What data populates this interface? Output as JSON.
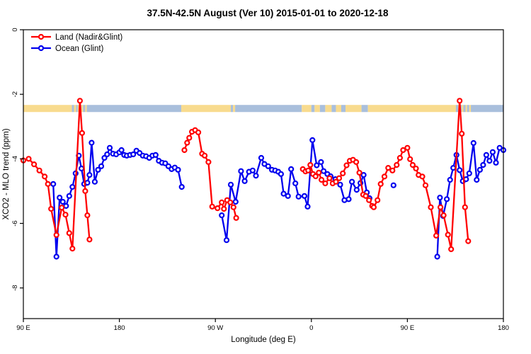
{
  "chart_data": {
    "type": "line",
    "title": "37.5N-42.5N August (Ver 10)   2015-01-01 to 2020-12-18",
    "xlabel": "Longitude (deg E)",
    "ylabel": "XCO2 - MLO trend (ppm)",
    "xlim": [
      90,
      540
    ],
    "ylim": [
      -8.95,
      0
    ],
    "grid": false,
    "legend_position": "top-left",
    "x_ticks": [
      {
        "pos": 90,
        "label": "90 E"
      },
      {
        "pos": 180,
        "label": "180"
      },
      {
        "pos": 270,
        "label": "90 W"
      },
      {
        "pos": 360,
        "label": "0"
      },
      {
        "pos": 450,
        "label": "90 E"
      },
      {
        "pos": 540,
        "label": "180"
      }
    ],
    "y_ticks": [
      {
        "pos": 0,
        "label": "0"
      },
      {
        "pos": -2,
        "label": "-2"
      },
      {
        "pos": -4,
        "label": "-4"
      },
      {
        "pos": -6,
        "label": "-6"
      },
      {
        "pos": -8,
        "label": "-8"
      }
    ],
    "land_ocean_band": {
      "ppm_top": -2.33,
      "ppm_bottom": -2.55,
      "land_color": "#f8db8e",
      "ocean_color": "#a9bfdc",
      "segments": [
        {
          "from": 90,
          "to": 135.5,
          "type": "land"
        },
        {
          "from": 135.5,
          "to": 137.5,
          "type": "ocean"
        },
        {
          "from": 137.5,
          "to": 139.5,
          "type": "land"
        },
        {
          "from": 139.5,
          "to": 141,
          "type": "ocean"
        },
        {
          "from": 141,
          "to": 142.5,
          "type": "land"
        },
        {
          "from": 142.5,
          "to": 144.5,
          "type": "ocean"
        },
        {
          "from": 144.5,
          "to": 146,
          "type": "land"
        },
        {
          "from": 146,
          "to": 148,
          "type": "ocean"
        },
        {
          "from": 148,
          "to": 149.5,
          "type": "land"
        },
        {
          "from": 149.5,
          "to": 238,
          "type": "ocean"
        },
        {
          "from": 238,
          "to": 284.5,
          "type": "land"
        },
        {
          "from": 284.5,
          "to": 286.5,
          "type": "ocean"
        },
        {
          "from": 286.5,
          "to": 288.5,
          "type": "land"
        },
        {
          "from": 288.5,
          "to": 351,
          "type": "ocean"
        },
        {
          "from": 351,
          "to": 360,
          "type": "land"
        },
        {
          "from": 360,
          "to": 363,
          "type": "ocean"
        },
        {
          "from": 363,
          "to": 368,
          "type": "land"
        },
        {
          "from": 368,
          "to": 373,
          "type": "ocean"
        },
        {
          "from": 373,
          "to": 379,
          "type": "land"
        },
        {
          "from": 379,
          "to": 383,
          "type": "ocean"
        },
        {
          "from": 383,
          "to": 388,
          "type": "land"
        },
        {
          "from": 388,
          "to": 392,
          "type": "ocean"
        },
        {
          "from": 392,
          "to": 407,
          "type": "land"
        },
        {
          "from": 407,
          "to": 413,
          "type": "ocean"
        },
        {
          "from": 413,
          "to": 495.5,
          "type": "land"
        },
        {
          "from": 495.5,
          "to": 497.5,
          "type": "ocean"
        },
        {
          "from": 497.5,
          "to": 499.5,
          "type": "land"
        },
        {
          "from": 499.5,
          "to": 501,
          "type": "ocean"
        },
        {
          "from": 501,
          "to": 502.5,
          "type": "land"
        },
        {
          "from": 502.5,
          "to": 504.5,
          "type": "ocean"
        },
        {
          "from": 504.5,
          "to": 506,
          "type": "land"
        },
        {
          "from": 506,
          "to": 508,
          "type": "ocean"
        },
        {
          "from": 508,
          "to": 509.5,
          "type": "land"
        },
        {
          "from": 509.5,
          "to": 540,
          "type": "ocean"
        }
      ]
    },
    "series": [
      {
        "name": "Ocean (Glint)",
        "color": "#0000ee",
        "segments": [
          [
            [
              118,
              -4.78
            ],
            [
              121,
              -7.03
            ],
            [
              124,
              -5.2
            ],
            [
              127,
              -5.33
            ],
            [
              130,
              -5.46
            ],
            [
              133,
              -5.15
            ],
            [
              136,
              -4.87
            ],
            [
              139,
              -4.45
            ],
            [
              142,
              -3.9
            ],
            [
              144.5,
              -4.3
            ],
            [
              147,
              -4.78
            ],
            [
              150,
              -4.74
            ],
            [
              152,
              -4.5
            ],
            [
              154,
              -3.5
            ],
            [
              157,
              -4.71
            ],
            [
              160,
              -4.34
            ],
            [
              163,
              -4.23
            ],
            [
              166,
              -3.97
            ],
            [
              168.5,
              -3.86
            ],
            [
              171,
              -3.66
            ],
            [
              174,
              -3.84
            ],
            [
              177,
              -3.86
            ],
            [
              180,
              -3.8
            ],
            [
              182,
              -3.73
            ],
            [
              184.5,
              -3.88
            ],
            [
              187,
              -3.9
            ],
            [
              190,
              -3.88
            ],
            [
              193,
              -3.86
            ],
            [
              196,
              -3.75
            ],
            [
              199,
              -3.82
            ],
            [
              202,
              -3.9
            ],
            [
              205,
              -3.92
            ],
            [
              208,
              -3.97
            ],
            [
              211,
              -3.9
            ],
            [
              214,
              -3.88
            ],
            [
              217,
              -4.06
            ],
            [
              220,
              -4.12
            ],
            [
              223,
              -4.14
            ],
            [
              226,
              -4.23
            ],
            [
              229,
              -4.32
            ],
            [
              232,
              -4.27
            ],
            [
              235,
              -4.34
            ],
            [
              238.5,
              -4.87
            ]
          ],
          [
            [
              276,
              -5.75
            ],
            [
              280.5,
              -6.52
            ],
            [
              284.5,
              -4.8
            ],
            [
              289,
              -5.33
            ],
            [
              294,
              -4.38
            ],
            [
              297.5,
              -4.69
            ],
            [
              301.5,
              -4.4
            ],
            [
              305,
              -4.36
            ],
            [
              308,
              -4.52
            ],
            [
              313,
              -3.97
            ],
            [
              316,
              -4.16
            ],
            [
              319.5,
              -4.23
            ],
            [
              323,
              -4.34
            ],
            [
              326,
              -4.36
            ],
            [
              329,
              -4.4
            ],
            [
              331.5,
              -4.47
            ],
            [
              334,
              -5.08
            ],
            [
              338,
              -5.15
            ],
            [
              341,
              -4.32
            ],
            [
              345,
              -4.76
            ],
            [
              348,
              -5.17
            ],
            [
              353.5,
              -5.15
            ],
            [
              356.5,
              -5.48
            ],
            [
              361,
              -3.42
            ],
            [
              365,
              -4.2
            ],
            [
              369,
              -4.1
            ],
            [
              371.5,
              -4.38
            ],
            [
              375,
              -4.47
            ],
            [
              378,
              -4.54
            ],
            [
              382.5,
              -4.63
            ],
            [
              387,
              -4.8
            ],
            [
              391,
              -5.28
            ],
            [
              395,
              -5.25
            ],
            [
              398,
              -4.71
            ],
            [
              402.5,
              -4.96
            ],
            [
              406,
              -4.75
            ],
            [
              409,
              -4.5
            ],
            [
              412,
              -5.04
            ],
            [
              414.5,
              -5.22
            ]
          ],
          [
            [
              437,
              -4.82
            ]
          ],
          [
            [
              478,
              -7.03
            ],
            [
              480.5,
              -5.2
            ],
            [
              483.5,
              -5.77
            ],
            [
              487,
              -5.25
            ],
            [
              490,
              -4.65
            ],
            [
              493,
              -4.28
            ],
            [
              496,
              -3.88
            ],
            [
              499,
              -4.35
            ],
            [
              502,
              -4.69
            ],
            [
              505,
              -4.63
            ],
            [
              508,
              -4.45
            ],
            [
              512,
              -3.51
            ],
            [
              515,
              -4.65
            ],
            [
              518,
              -4.34
            ],
            [
              521,
              -4.19
            ],
            [
              524,
              -3.88
            ],
            [
              527,
              -4.06
            ],
            [
              530,
              -3.79
            ],
            [
              533,
              -4.12
            ],
            [
              536.5,
              -3.66
            ],
            [
              540,
              -3.73
            ]
          ]
        ]
      },
      {
        "name": "Land (Nadir&Glint)",
        "color": "#ff0000",
        "segments": [
          [
            [
              90,
              -4.05
            ],
            [
              95,
              -4.0
            ],
            [
              100,
              -4.17
            ],
            [
              105,
              -4.36
            ],
            [
              110,
              -4.55
            ],
            [
              113,
              -4.78
            ],
            [
              116,
              -5.55
            ],
            [
              121,
              -6.36
            ],
            [
              126,
              -5.51
            ],
            [
              129.5,
              -5.73
            ],
            [
              133,
              -6.3
            ],
            [
              136,
              -6.78
            ],
            [
              143,
              -2.2
            ],
            [
              145,
              -3.2
            ],
            [
              148,
              -5.0
            ],
            [
              150,
              -5.75
            ],
            [
              152,
              -6.5
            ]
          ],
          [
            [
              241,
              -3.73
            ],
            [
              243.5,
              -3.5
            ],
            [
              245.5,
              -3.35
            ],
            [
              248,
              -3.16
            ],
            [
              251,
              -3.11
            ],
            [
              254,
              -3.18
            ],
            [
              257.5,
              -3.84
            ],
            [
              260,
              -3.9
            ],
            [
              263.5,
              -4.1
            ],
            [
              267,
              -5.48
            ],
            [
              272,
              -5.53
            ],
            [
              276,
              -5.35
            ],
            [
              278,
              -5.55
            ],
            [
              281,
              -5.28
            ],
            [
              284,
              -5.35
            ],
            [
              287,
              -5.5
            ],
            [
              289.5,
              -5.83
            ]
          ],
          [
            [
              352,
              -4.32
            ],
            [
              354.5,
              -4.39
            ],
            [
              357,
              -4.36
            ],
            [
              359,
              -4.19
            ],
            [
              361.5,
              -4.47
            ],
            [
              364,
              -4.54
            ],
            [
              367,
              -4.43
            ],
            [
              369.5,
              -4.65
            ],
            [
              373,
              -4.76
            ],
            [
              377,
              -4.6
            ],
            [
              380,
              -4.76
            ],
            [
              383,
              -4.71
            ],
            [
              386,
              -4.6
            ],
            [
              389.5,
              -4.45
            ],
            [
              393,
              -4.2
            ],
            [
              396,
              -4.06
            ],
            [
              399,
              -4.03
            ],
            [
              402,
              -4.1
            ],
            [
              405,
              -4.43
            ],
            [
              408.5,
              -5.11
            ],
            [
              411,
              -5.15
            ],
            [
              414,
              -5.28
            ],
            [
              417,
              -5.46
            ],
            [
              418.5,
              -5.5
            ],
            [
              422,
              -5.28
            ],
            [
              425,
              -4.78
            ],
            [
              428.5,
              -4.55
            ],
            [
              432,
              -4.28
            ],
            [
              436,
              -4.36
            ],
            [
              440,
              -4.19
            ],
            [
              443,
              -3.97
            ],
            [
              446,
              -3.73
            ],
            [
              450,
              -3.66
            ],
            [
              452.5,
              -4.01
            ],
            [
              455,
              -4.19
            ],
            [
              458,
              -4.3
            ],
            [
              460.5,
              -4.5
            ],
            [
              464,
              -4.55
            ],
            [
              467,
              -4.82
            ],
            [
              472,
              -5.5
            ],
            [
              477,
              -6.38
            ],
            [
              481,
              -5.5
            ],
            [
              484,
              -5.75
            ],
            [
              488,
              -6.35
            ],
            [
              491,
              -6.8
            ],
            [
              499,
              -2.2
            ],
            [
              501,
              -3.22
            ],
            [
              504,
              -5.5
            ],
            [
              507,
              -6.55
            ]
          ]
        ]
      }
    ]
  },
  "legend": {
    "items": [
      {
        "label": "Land (Nadir&Glint)",
        "color": "#ff0000"
      },
      {
        "label": "Ocean (Glint)",
        "color": "#0000ee"
      }
    ]
  }
}
